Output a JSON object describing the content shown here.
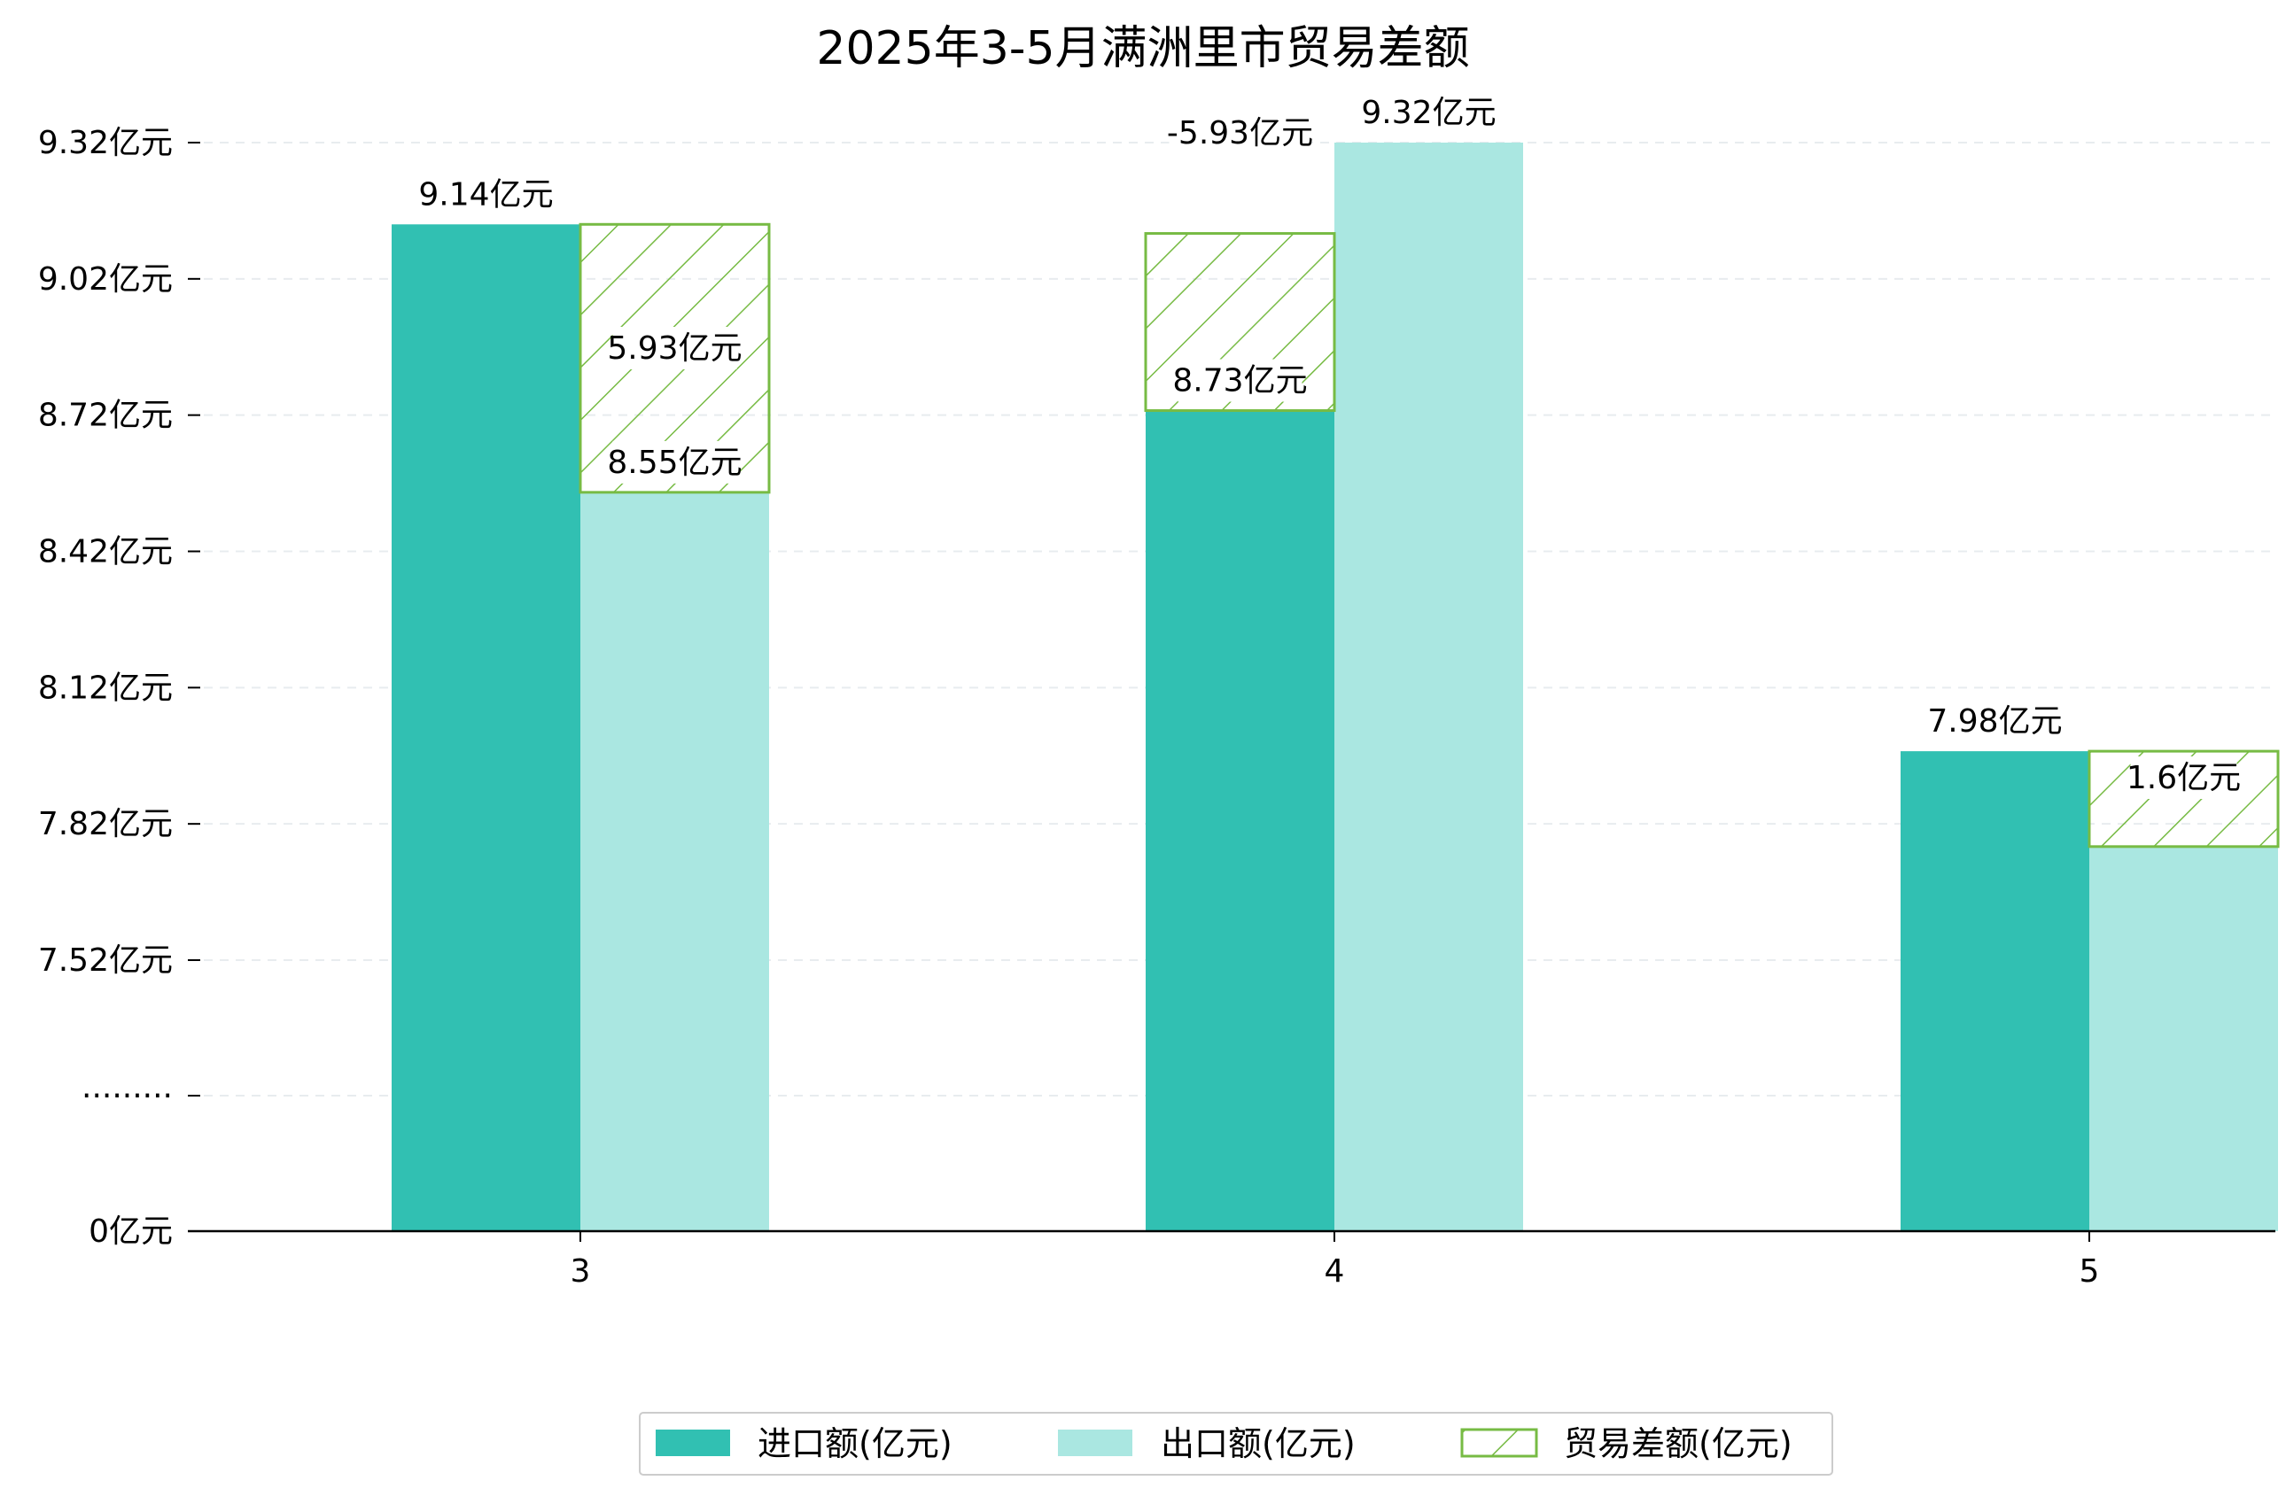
{
  "chart_data": {
    "type": "bar",
    "title": "2025年3-5月满洲里市贸易差额",
    "categories": [
      "3",
      "4",
      "5"
    ],
    "series": [
      {
        "name": "进口额(亿元)",
        "values": [
          9.14,
          8.73,
          7.98
        ],
        "labels": [
          "9.14亿元",
          "8.73亿元",
          "7.98亿元"
        ],
        "color": "#31c0b2"
      },
      {
        "name": "出口额(亿元)",
        "values": [
          8.55,
          9.32,
          7.77
        ],
        "labels": [
          "8.55亿元",
          "9.32亿元",
          ""
        ],
        "color": "#aae7e1"
      },
      {
        "name": "贸易差额(亿元)",
        "values": [
          5.93,
          -5.93,
          1.6
        ],
        "labels": [
          "5.93亿元",
          "-5.93亿元",
          "1.6亿元"
        ],
        "color": "#77bb44",
        "pattern": "hatch"
      }
    ],
    "y_ticks": [
      "0亿元",
      "·········",
      "7.52亿元",
      "7.82亿元",
      "8.12亿元",
      "8.42亿元",
      "8.72亿元",
      "9.02亿元",
      "9.32亿元"
    ],
    "y_tick_values": [
      0,
      null,
      7.52,
      7.82,
      8.12,
      8.42,
      8.72,
      9.02,
      9.32
    ],
    "axis_break": true,
    "grid": "horizontal dashed",
    "legend": "bottom-center"
  }
}
